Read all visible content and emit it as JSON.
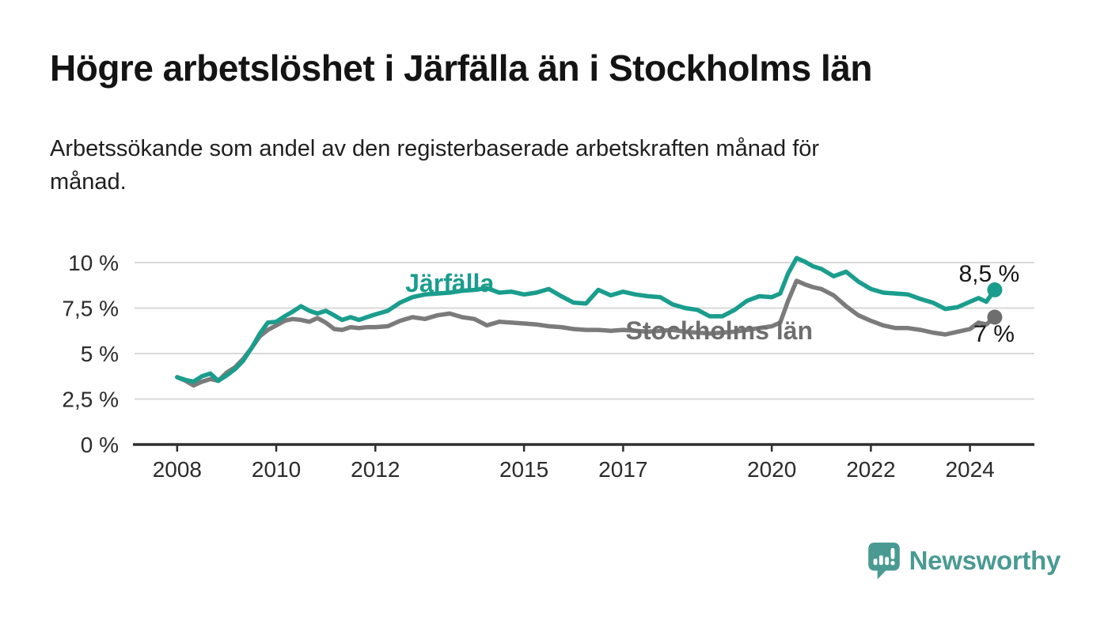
{
  "header": {
    "title": "Högre arbetslöshet i Järfälla än i Stockholms län",
    "subtitle_line1": "Arbetssökande som andel av den registerbaserade arbetskraften månad för",
    "subtitle_line2": "månad.",
    "subtitle_full": "Arbetssökande som andel av den registerbaserade arbetskraften månad för månad."
  },
  "footer": {
    "brand": "Newsworthy",
    "brand_color": "#4a9a93",
    "logo_icon": "speech-bubble-bar-chart-icon"
  },
  "colors": {
    "jarfalla_teal": "#1a9d8d",
    "stockholm_gray": "#7b7b7b",
    "stockholm_label_gray": "#6e6e6e",
    "end_label_black": "#161616",
    "gridline": "#d9d9d9",
    "axis": "#2f2f2f",
    "tick_label": "#2b2b2b"
  },
  "chart_data": {
    "type": "line",
    "title": "Högre arbetslöshet i Järfälla än i Stockholms län",
    "subtitle": "Arbetssökande som andel av den registerbaserade arbetskraften månad för månad.",
    "x_unit": "year (monthly series, decimal years)",
    "y_unit": "percent of registered labour force",
    "xlim": [
      2007.14,
      2025.3
    ],
    "ylim": [
      0,
      10
    ],
    "grid": "horizontal",
    "legend": "inline-series-labels",
    "x_ticks": [
      {
        "value": 2008,
        "label": "2008"
      },
      {
        "value": 2010,
        "label": "2010"
      },
      {
        "value": 2012,
        "label": "2012"
      },
      {
        "value": 2015,
        "label": "2015"
      },
      {
        "value": 2017,
        "label": "2017"
      },
      {
        "value": 2020,
        "label": "2020"
      },
      {
        "value": 2022,
        "label": "2022"
      },
      {
        "value": 2024,
        "label": "2024"
      }
    ],
    "y_ticks": [
      {
        "value": 0,
        "label": "0 %"
      },
      {
        "value": 2.5,
        "label": "2,5 %"
      },
      {
        "value": 5,
        "label": "5 %"
      },
      {
        "value": 7.5,
        "label": "7,5 %"
      },
      {
        "value": 10,
        "label": "10 %"
      }
    ],
    "x": [
      2008.0,
      2008.17,
      2008.33,
      2008.5,
      2008.67,
      2008.83,
      2009.0,
      2009.17,
      2009.33,
      2009.5,
      2009.67,
      2009.83,
      2010.0,
      2010.17,
      2010.33,
      2010.5,
      2010.67,
      2010.83,
      2011.0,
      2011.17,
      2011.33,
      2011.5,
      2011.67,
      2011.83,
      2012.0,
      2012.25,
      2012.5,
      2012.75,
      2013.0,
      2013.25,
      2013.5,
      2013.75,
      2014.0,
      2014.25,
      2014.5,
      2014.75,
      2015.0,
      2015.25,
      2015.5,
      2015.75,
      2016.0,
      2016.25,
      2016.5,
      2016.75,
      2017.0,
      2017.25,
      2017.5,
      2017.75,
      2018.0,
      2018.25,
      2018.5,
      2018.75,
      2019.0,
      2019.25,
      2019.5,
      2019.75,
      2020.0,
      2020.17,
      2020.33,
      2020.5,
      2020.67,
      2020.83,
      2021.0,
      2021.25,
      2021.5,
      2021.75,
      2022.0,
      2022.25,
      2022.5,
      2022.75,
      2023.0,
      2023.25,
      2023.5,
      2023.75,
      2024.0,
      2024.17,
      2024.33,
      2024.5
    ],
    "series": [
      {
        "name": "Stockholms län",
        "color": "#7b7b7b",
        "label_color": "#6e6e6e",
        "end_value": 7.0,
        "end_value_label": "7 %",
        "values": [
          3.7,
          3.5,
          3.25,
          3.45,
          3.6,
          3.5,
          3.95,
          4.25,
          4.7,
          5.3,
          5.95,
          6.3,
          6.55,
          6.8,
          6.9,
          6.85,
          6.75,
          6.95,
          6.7,
          6.35,
          6.3,
          6.45,
          6.4,
          6.45,
          6.45,
          6.5,
          6.8,
          7.0,
          6.9,
          7.1,
          7.2,
          7.0,
          6.9,
          6.55,
          6.75,
          6.7,
          6.65,
          6.6,
          6.5,
          6.45,
          6.35,
          6.3,
          6.3,
          6.25,
          6.3,
          6.25,
          6.2,
          6.25,
          6.3,
          6.2,
          6.15,
          6.1,
          6.15,
          6.2,
          6.3,
          6.4,
          6.5,
          6.7,
          7.9,
          9.0,
          8.8,
          8.65,
          8.55,
          8.2,
          7.6,
          7.1,
          6.8,
          6.55,
          6.4,
          6.4,
          6.3,
          6.15,
          6.05,
          6.2,
          6.35,
          6.7,
          6.6,
          7.0
        ]
      },
      {
        "name": "Järfälla",
        "color": "#1a9d8d",
        "label_color": "#1a9d8d",
        "end_value": 8.5,
        "end_value_label": "8,5 %",
        "values": [
          3.7,
          3.55,
          3.45,
          3.75,
          3.9,
          3.5,
          3.8,
          4.15,
          4.6,
          5.3,
          6.1,
          6.7,
          6.75,
          7.05,
          7.3,
          7.6,
          7.35,
          7.2,
          7.35,
          7.1,
          6.85,
          7.0,
          6.85,
          7.0,
          7.15,
          7.35,
          7.8,
          8.1,
          8.25,
          8.3,
          8.35,
          8.45,
          8.5,
          8.6,
          8.35,
          8.4,
          8.25,
          8.35,
          8.55,
          8.15,
          7.8,
          7.75,
          8.5,
          8.2,
          8.4,
          8.25,
          8.15,
          8.1,
          7.7,
          7.5,
          7.4,
          7.05,
          7.05,
          7.4,
          7.9,
          8.15,
          8.1,
          8.3,
          9.4,
          10.25,
          10.05,
          9.8,
          9.65,
          9.25,
          9.5,
          8.95,
          8.55,
          8.35,
          8.3,
          8.25,
          8.0,
          7.8,
          7.45,
          7.55,
          7.85,
          8.05,
          7.85,
          8.5
        ]
      }
    ],
    "annotations": [
      {
        "text": "Järfälla",
        "x": 2013.5,
        "y": 8.4,
        "anchor": "middle",
        "color": "#1a9d8d",
        "size": 32,
        "weight": "bold"
      },
      {
        "text": "Stockholms län",
        "x": 2018.94,
        "y": 5.78,
        "anchor": "middle",
        "color": "#6e6e6e",
        "size": 32,
        "weight": "bold"
      },
      {
        "text": "8,5 %",
        "x": 2025.0,
        "y": 8.95,
        "anchor": "end",
        "color": "#161616",
        "size": 30,
        "weight": "normal"
      },
      {
        "text": "7 %",
        "x": 2024.9,
        "y": 5.65,
        "anchor": "end",
        "color": "#161616",
        "size": 30,
        "weight": "normal"
      }
    ]
  }
}
